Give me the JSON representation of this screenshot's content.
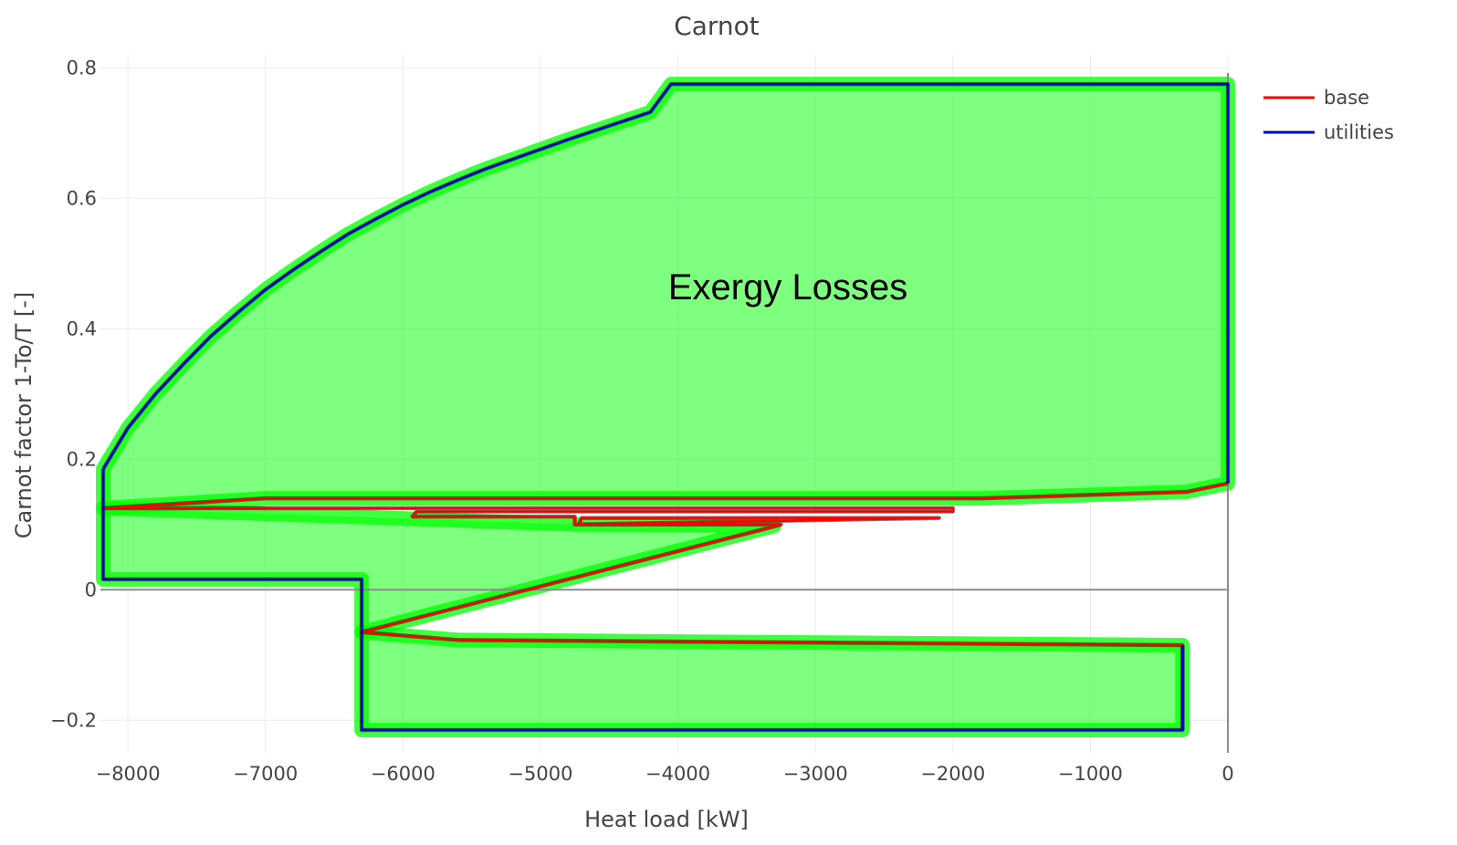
{
  "chart_data": {
    "type": "line",
    "title": "Carnot",
    "xlabel": "Heat load [kW]",
    "ylabel": "Carnot factor 1-To/T [-]",
    "xlim": [
      -8200,
      0
    ],
    "ylim": [
      -0.25,
      0.82
    ],
    "xticks": [
      -8000,
      -7000,
      -6000,
      -5000,
      -4000,
      -3000,
      -2000,
      -1000,
      0
    ],
    "xtick_labels": [
      "−8000",
      "−7000",
      "−6000",
      "−5000",
      "−4000",
      "−3000",
      "−2000",
      "−1000",
      "0"
    ],
    "yticks": [
      -0.2,
      0,
      0.2,
      0.4,
      0.6,
      0.8
    ],
    "ytick_labels": [
      "−0.2",
      "0",
      "0.2",
      "0.4",
      "0.6",
      "0.8"
    ],
    "grid": true,
    "legend": {
      "placement": "top-right-outside"
    },
    "series": [
      {
        "name": "base",
        "color": "#ff0000",
        "x": [
          0,
          -300,
          -1800,
          -7000,
          -8180,
          -6000,
          -2000,
          -2000,
          -5900,
          -5930,
          -4750,
          -4750,
          -2100,
          -2100,
          -4700,
          -4720,
          -3250,
          -3280,
          -6300,
          -5600,
          -330,
          -330
        ],
        "y": [
          0.163,
          0.15,
          0.14,
          0.14,
          0.125,
          0.125,
          0.125,
          0.12,
          0.12,
          0.112,
          0.112,
          0.1,
          0.11,
          0.11,
          0.11,
          0.1,
          0.1,
          0.098,
          -0.065,
          -0.077,
          -0.085,
          -0.215
        ]
      },
      {
        "name": "utilities",
        "color": "#0000cd",
        "x": [
          -8180,
          -8000,
          -7800,
          -7600,
          -7400,
          -7200,
          -7000,
          -6800,
          -6600,
          -6400,
          -6200,
          -6000,
          -5800,
          -5600,
          -5400,
          -5200,
          -5000,
          -4800,
          -4600,
          -4400,
          -4200,
          -4050,
          0,
          0
        ],
        "y": [
          0.185,
          0.248,
          0.3,
          0.345,
          0.388,
          0.425,
          0.46,
          0.49,
          0.518,
          0.545,
          0.568,
          0.59,
          0.61,
          0.628,
          0.645,
          0.66,
          0.675,
          0.69,
          0.704,
          0.718,
          0.732,
          0.775,
          0.775,
          0.163
        ]
      },
      {
        "x": [
          -8180,
          -8180,
          -6300,
          -6300,
          -330,
          -330
        ],
        "y": [
          0.185,
          0.016,
          0.016,
          -0.215,
          -0.215,
          -0.085
        ]
      }
    ],
    "shaded_regions": [
      {
        "color": "#00ff00",
        "x": [
          -8180,
          -8000,
          -7800,
          -7600,
          -7400,
          -7200,
          -7000,
          -6800,
          -6600,
          -6400,
          -6200,
          -6000,
          -5800,
          -5600,
          -5400,
          -5200,
          -5000,
          -4800,
          -4600,
          -4400,
          -4200,
          -4050,
          0,
          0,
          -300,
          -1800,
          -7000,
          -8180
        ],
        "y": [
          0.185,
          0.248,
          0.3,
          0.345,
          0.388,
          0.425,
          0.46,
          0.49,
          0.518,
          0.545,
          0.568,
          0.59,
          0.61,
          0.628,
          0.645,
          0.66,
          0.675,
          0.69,
          0.704,
          0.718,
          0.732,
          0.775,
          0.775,
          0.163,
          0.15,
          0.14,
          0.14,
          0.125
        ]
      },
      {
        "color": "#00ff00",
        "x": [
          -8180,
          -4720,
          -3300,
          -6300,
          -6300,
          -8180
        ],
        "y": [
          0.125,
          0.1,
          0.098,
          -0.065,
          0.016,
          0.016
        ]
      },
      {
        "color": "#00ff00",
        "x": [
          -6300,
          -5600,
          -330,
          -330,
          -6300
        ],
        "y": [
          -0.065,
          -0.077,
          -0.085,
          -0.215,
          -0.215
        ]
      }
    ],
    "annotations": [
      {
        "text": "Exergy Losses",
        "x": -3200,
        "y": 0.445
      }
    ]
  }
}
